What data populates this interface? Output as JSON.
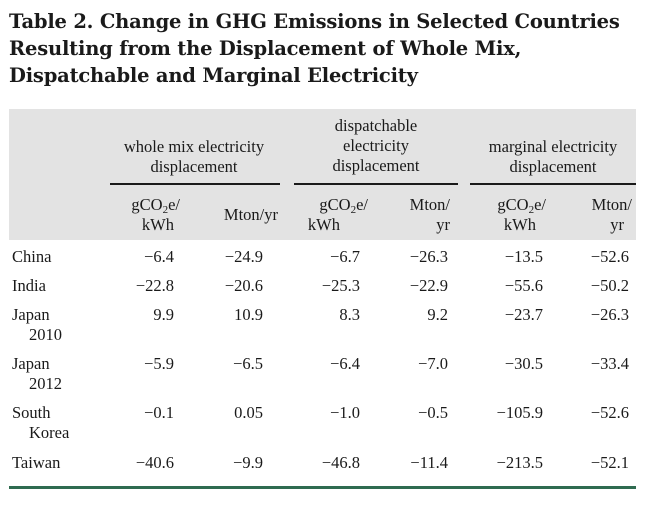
{
  "title_lines": [
    "Table 2. Change in GHG Emissions in Selected Countries",
    "Resulting from the Displacement of Whole Mix,",
    "Dispatchable and Marginal Electricity"
  ],
  "groups": [
    {
      "lines": [
        "whole mix electricity",
        "displacement"
      ]
    },
    {
      "lines": [
        "dispatchable",
        "electricity",
        "displacement"
      ]
    },
    {
      "lines": [
        "marginal electricity",
        "displacement"
      ]
    }
  ],
  "units": {
    "g_line1_pre": "gCO",
    "g_line1_sub": "2",
    "g_line1_post": "e/",
    "g_line2": "kWh",
    "m_single": "Mton/yr",
    "m_line1": "Mton/",
    "m_line2": "yr"
  },
  "rows": [
    {
      "label": [
        "China"
      ],
      "values": [
        "−6.4",
        "−24.9",
        "−6.7",
        "−26.3",
        "−13.5",
        "−52.6"
      ]
    },
    {
      "label": [
        "India"
      ],
      "values": [
        "−22.8",
        "−20.6",
        "−25.3",
        "−22.9",
        "−55.6",
        "−50.2"
      ]
    },
    {
      "label": [
        "Japan",
        "2010"
      ],
      "values": [
        "9.9",
        "10.9",
        "8.3",
        "9.2",
        "−23.7",
        "−26.3"
      ]
    },
    {
      "label": [
        "Japan",
        "2012"
      ],
      "values": [
        "−5.9",
        "−6.5",
        "−6.4",
        "−7.0",
        "−30.5",
        "−33.4"
      ]
    },
    {
      "label": [
        "South",
        "Korea"
      ],
      "values": [
        "−0.1",
        "0.05",
        "−1.0",
        "−0.5",
        "−105.9",
        "−52.6"
      ]
    },
    {
      "label": [
        "Taiwan"
      ],
      "values": [
        "−40.6",
        "−9.9",
        "−46.8",
        "−11.4",
        "−213.5",
        "−52.1"
      ]
    }
  ]
}
